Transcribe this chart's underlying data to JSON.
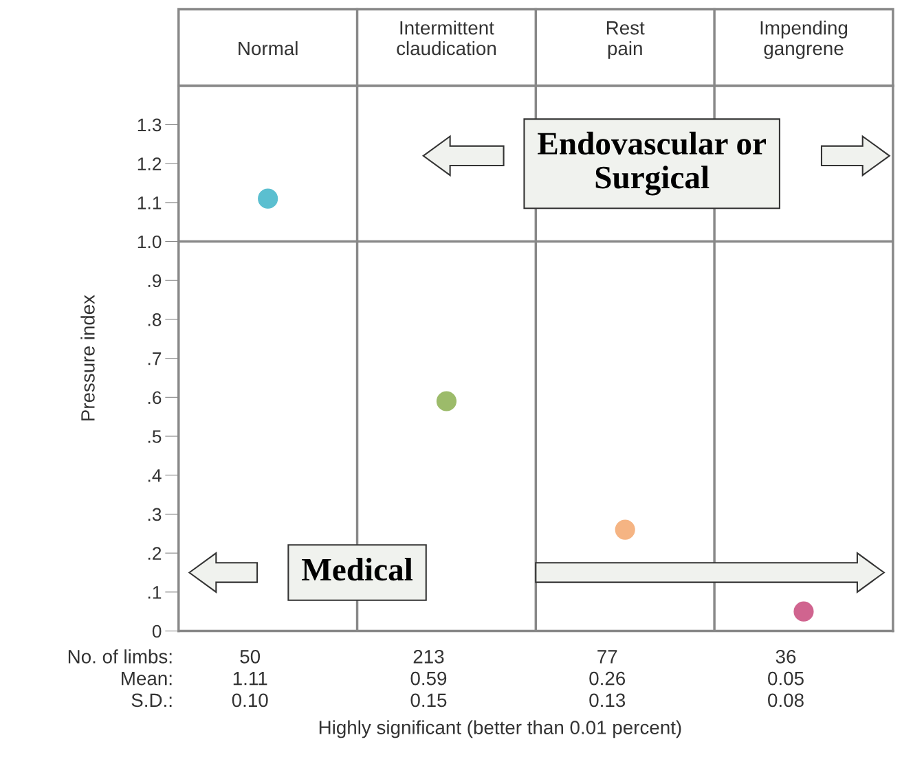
{
  "chart_data": {
    "type": "scatter",
    "ylabel": "Pressure index",
    "categories": [
      "Normal",
      "Intermittent\nclaudication",
      "Rest\npain",
      "Impending\ngangrene"
    ],
    "values": [
      1.11,
      0.59,
      0.26,
      0.05
    ],
    "colors": [
      "#5bbfd0",
      "#9cbb6a",
      "#f5b483",
      "#d0648f"
    ],
    "value_labels": [
      "1.11",
      "0.59",
      "0.26",
      "0.05"
    ],
    "marker": "circle",
    "ylim": [
      0,
      1.4
    ],
    "yticks": [
      0,
      {
        "value": 0.1,
        "label": ".1"
      },
      {
        "value": 0.2,
        "label": ".2"
      },
      {
        "value": 0.3,
        "label": ".3"
      },
      {
        "value": 0.4,
        "label": ".4"
      },
      {
        "value": 0.5,
        "label": ".5"
      },
      {
        "value": 0.6,
        "label": ".6"
      },
      {
        "value": 0.7,
        "label": ".7"
      },
      {
        "value": 0.8,
        "label": ".8"
      },
      {
        "value": 0.9,
        "label": ".9"
      },
      {
        "value": 1.0,
        "label": "1.0"
      },
      {
        "value": 1.1,
        "label": "1.1"
      },
      {
        "value": 1.2,
        "label": "1.2"
      },
      {
        "value": 1.3,
        "label": "1.3"
      }
    ],
    "ref_lines": [
      {
        "axis": "y",
        "value": 1.0,
        "color": "#888888"
      }
    ],
    "grid": false,
    "annotations": [
      "No. of limbs:",
      "Mean:",
      "S.D.:",
      "50",
      "213",
      "77",
      "36",
      "0.10",
      "0.15",
      "0.13",
      "0.08",
      "Highly significant (better than 0.01 percent)",
      "Endovascular or\nSurgical",
      "Medical"
    ]
  }
}
